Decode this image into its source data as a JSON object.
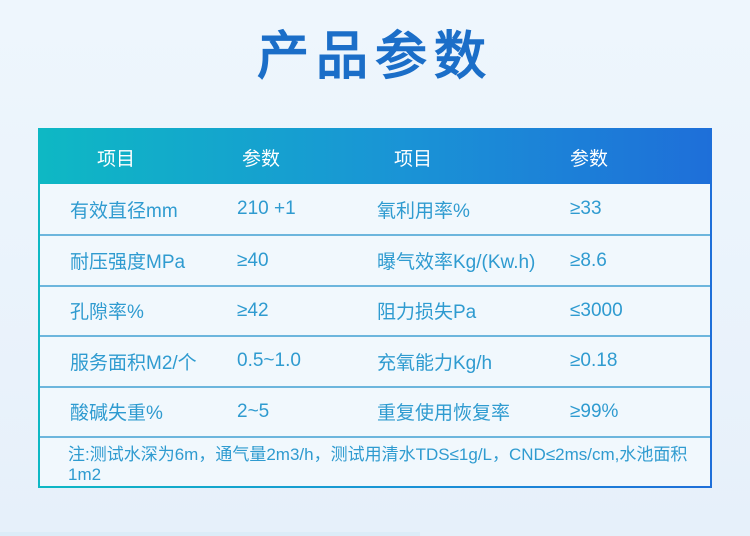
{
  "page": {
    "title": "产品参数"
  },
  "table": {
    "headers": [
      "项目",
      "参数",
      "项目",
      "参数"
    ],
    "rows": [
      {
        "item1": "有效直径mm",
        "value1": "210 +1",
        "item2": "氧利用率%",
        "value2": "≥33"
      },
      {
        "item1": "耐压强度MPa",
        "value1": "≥40",
        "item2": "曝气效率Kg/(Kw.h)",
        "value2": "≥8.6"
      },
      {
        "item1": "孔隙率%",
        "value1": "≥42",
        "item2": "阻力损失Pa",
        "value2": "≤3000"
      },
      {
        "item1": "服务面积M2/个",
        "value1": "0.5~1.0",
        "item2": "充氧能力Kg/h",
        "value2": "≥0.18"
      },
      {
        "item1": "酸碱失重%",
        "value1": "2~5",
        "item2": "重复使用恢复率",
        "value2": "≥99%"
      }
    ],
    "note": "注:测试水深为6m，通气量2m3/h，测试用清水TDS≤1g/L，CND≤2ms/cm,水池面积1m2"
  },
  "colors": {
    "title": "#1b6ec8",
    "header_gradient_start": "#0eb8c4",
    "header_gradient_end": "#1e6fd9",
    "cell_text": "#2f9bd0",
    "row_divider": "#6db6dd",
    "table_body_bg": "#f1f8fd",
    "page_bg": "#eaf3fb"
  }
}
